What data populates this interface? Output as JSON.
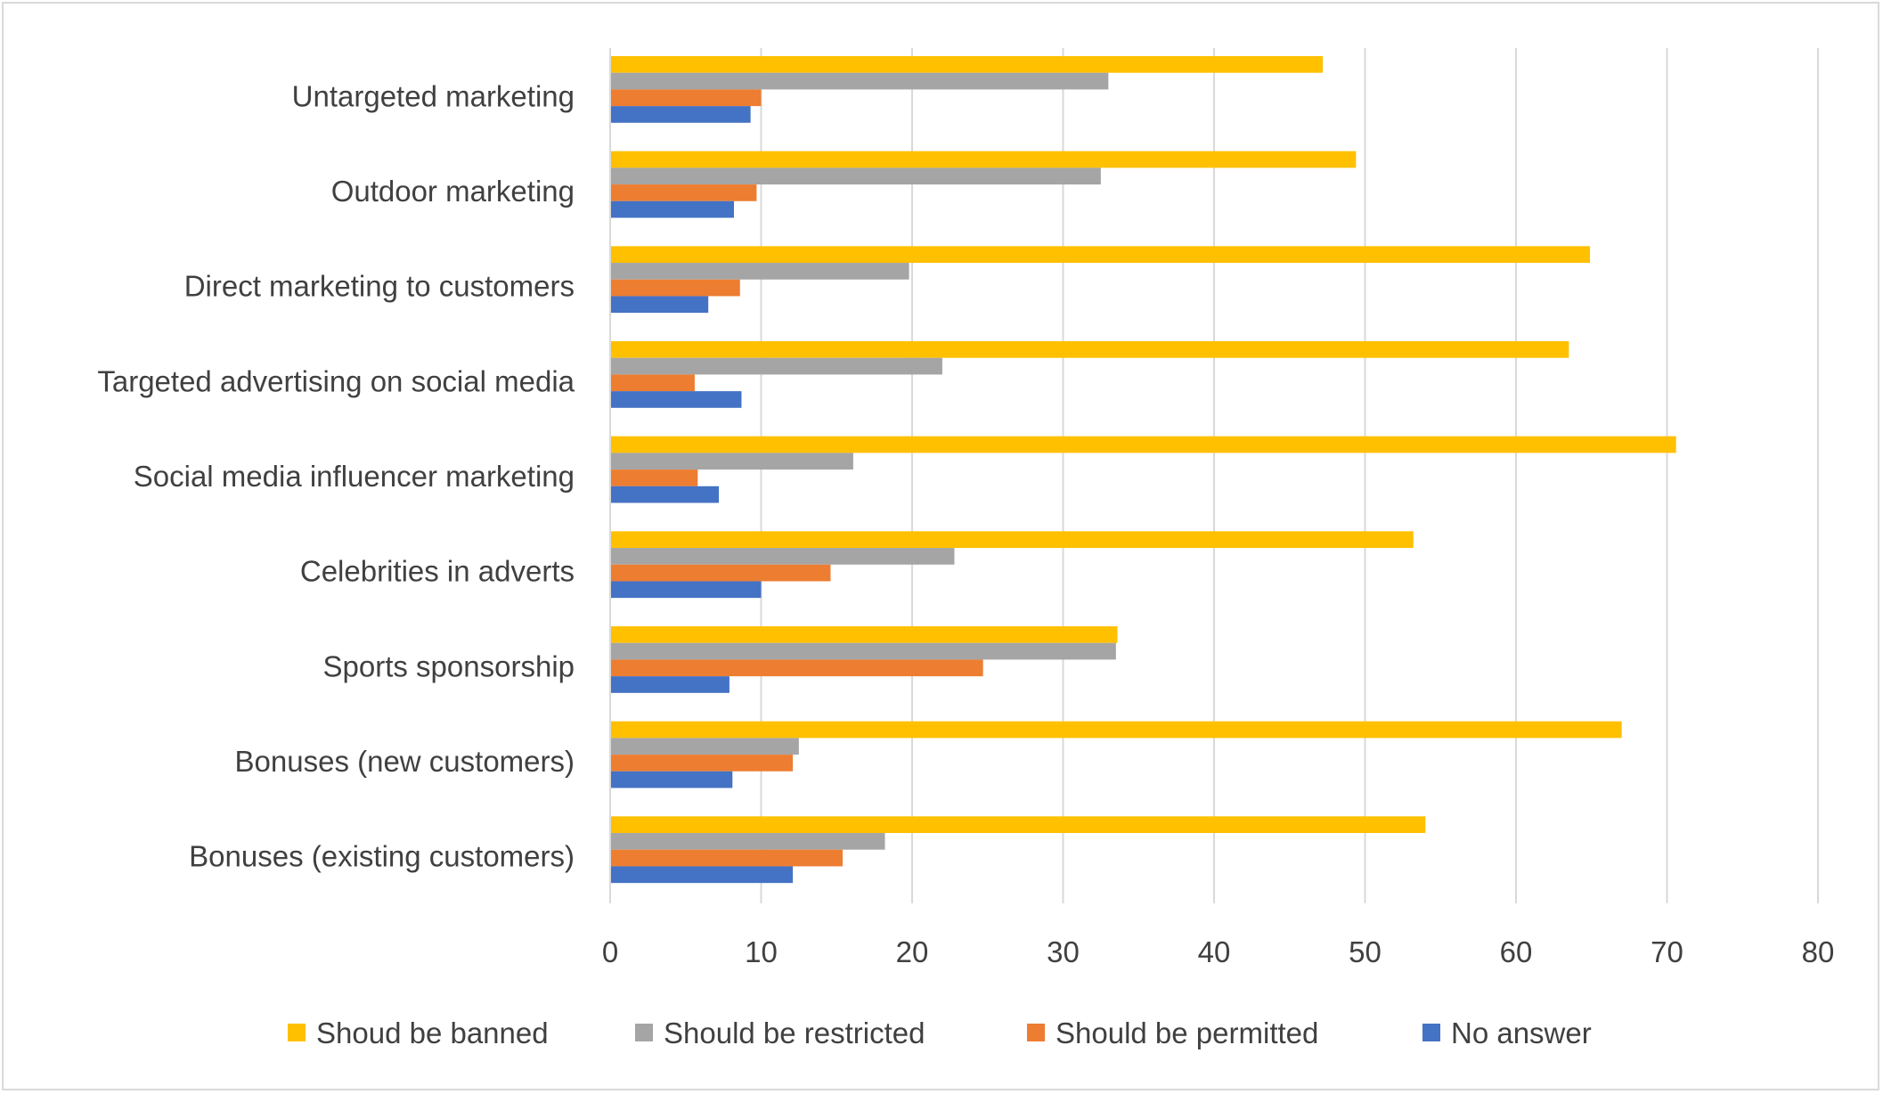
{
  "chart_data": {
    "type": "bar",
    "orientation": "horizontal",
    "categories": [
      "Untargeted marketing",
      "Outdoor marketing",
      "Direct marketing to customers",
      "Targeted advertising on social media",
      "Social media influencer marketing",
      "Celebrities in adverts",
      "Sports sponsorship",
      "Bonuses (new customers)",
      "Bonuses (existing customers)"
    ],
    "series": [
      {
        "name": "Shoud be banned",
        "color": "#FFC000",
        "values": [
          47.2,
          49.4,
          64.9,
          63.5,
          70.6,
          53.2,
          33.6,
          67.0,
          54.0
        ]
      },
      {
        "name": "Should be restricted",
        "color": "#A5A5A5",
        "values": [
          33.0,
          32.5,
          19.8,
          22.0,
          16.1,
          22.8,
          33.5,
          12.5,
          18.2
        ]
      },
      {
        "name": "Should be permitted",
        "color": "#ED7D31",
        "values": [
          10.0,
          9.7,
          8.6,
          5.6,
          5.8,
          14.6,
          24.7,
          12.1,
          15.4
        ]
      },
      {
        "name": "No answer",
        "color": "#4472C4",
        "values": [
          9.3,
          8.2,
          6.5,
          8.7,
          7.2,
          10.0,
          7.9,
          8.1,
          12.1
        ]
      }
    ],
    "xlim": [
      0,
      80
    ],
    "xticks": [
      "0",
      "10",
      "20",
      "30",
      "40",
      "50",
      "60",
      "70",
      "80"
    ],
    "grid": true,
    "legend_position": "bottom",
    "title": "",
    "xlabel": "",
    "ylabel": ""
  }
}
